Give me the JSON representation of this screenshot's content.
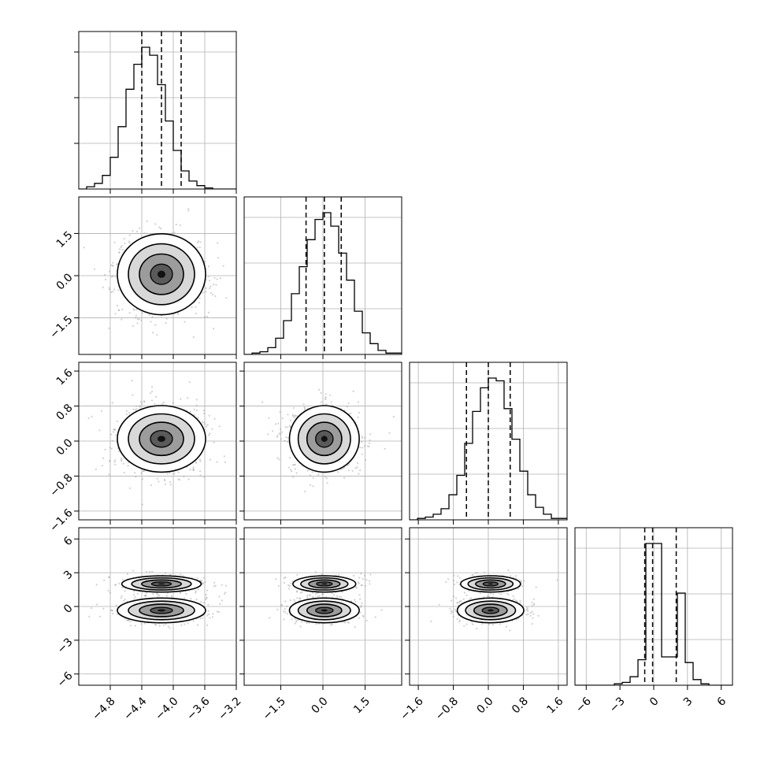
{
  "chart_data": {
    "type": "corner",
    "grid": true,
    "parameters": [
      {
        "range": [
          -5.2,
          -3.2
        ],
        "ticks": [
          -4.8,
          -4.4,
          -4.0,
          -3.6,
          -3.2
        ],
        "tick_labels": [
          "−4.8",
          "−4.4",
          "−4.0",
          "−3.6",
          "−3.2"
        ],
        "quantiles": [
          -4.4,
          -4.15,
          -3.9
        ]
      },
      {
        "range": [
          -2.8,
          2.8
        ],
        "ticks": [
          -1.5,
          0.0,
          1.5
        ],
        "tick_labels": [
          "−1.5",
          "0.0",
          "1.5"
        ],
        "quantiles": [
          -0.6,
          0.05,
          0.65
        ]
      },
      {
        "range": [
          -1.8,
          1.8
        ],
        "ticks": [
          -1.6,
          -0.8,
          0.0,
          0.8,
          1.6
        ],
        "tick_labels": [
          "−1.6",
          "−0.8",
          "0.0",
          "0.8",
          "1.6"
        ],
        "quantiles": [
          -0.5,
          0.0,
          0.5
        ]
      },
      {
        "range": [
          -7,
          7
        ],
        "ticks": [
          -6,
          -3,
          0,
          3,
          6
        ],
        "tick_labels": [
          "−6",
          "−3",
          "0",
          "3",
          "6"
        ],
        "quantiles": [
          -0.8,
          -0.1,
          2.0
        ]
      }
    ],
    "histograms": [
      {
        "bins": [
          -5.2,
          -5.1,
          -5.0,
          -4.9,
          -4.8,
          -4.7,
          -4.6,
          -4.5,
          -4.4,
          -4.3,
          -4.2,
          -4.1,
          -4.0,
          -3.9,
          -3.8,
          -3.7,
          -3.6,
          -3.5,
          -3.4,
          -3.3,
          -3.2
        ],
        "counts": [
          0,
          2,
          5,
          12,
          28,
          55,
          88,
          110,
          125,
          118,
          92,
          60,
          34,
          16,
          7,
          3,
          1,
          0,
          0,
          0
        ]
      },
      {
        "bins": [
          -2.8,
          -2.52,
          -2.24,
          -1.96,
          -1.68,
          -1.4,
          -1.12,
          -0.84,
          -0.56,
          -0.28,
          0.0,
          0.28,
          0.56,
          0.84,
          1.12,
          1.4,
          1.68,
          1.96,
          2.24,
          2.52,
          2.8
        ],
        "counts": [
          0,
          1,
          2,
          5,
          12,
          25,
          45,
          65,
          85,
          100,
          105,
          95,
          75,
          55,
          32,
          16,
          8,
          3,
          1,
          1
        ]
      },
      {
        "bins": [
          -1.8,
          -1.62,
          -1.44,
          -1.26,
          -1.08,
          -0.9,
          -0.72,
          -0.54,
          -0.36,
          -0.18,
          0.0,
          0.18,
          0.36,
          0.54,
          0.72,
          0.9,
          1.08,
          1.26,
          1.44,
          1.62,
          1.8
        ],
        "counts": [
          0,
          1,
          2,
          4,
          8,
          18,
          32,
          55,
          78,
          95,
          102,
          100,
          80,
          58,
          35,
          18,
          9,
          4,
          1,
          1
        ]
      },
      {
        "bins": [
          -7,
          -6.3,
          -5.6,
          -4.9,
          -4.2,
          -3.5,
          -2.8,
          -2.1,
          -1.4,
          -0.7,
          0.0,
          0.7,
          1.4,
          2.1,
          2.8,
          3.5,
          4.2,
          4.9,
          5.6,
          6.3,
          7.0
        ],
        "counts": [
          0,
          0,
          0,
          0,
          0,
          1,
          2,
          6,
          18,
          100,
          100,
          20,
          20,
          65,
          16,
          4,
          1,
          0,
          0,
          0
        ]
      }
    ],
    "pairs": [
      {
        "row": 1,
        "col": 0,
        "center": [
          -4.15,
          0.05
        ],
        "sigma": [
          0.28,
          0.72
        ]
      },
      {
        "row": 2,
        "col": 0,
        "center": [
          -4.15,
          0.05
        ],
        "sigma": [
          0.28,
          0.38
        ]
      },
      {
        "row": 2,
        "col": 1,
        "center": [
          0.05,
          0.05
        ],
        "sigma": [
          0.62,
          0.38
        ]
      },
      {
        "row": 3,
        "col": 0,
        "center": [
          -4.15,
          -0.35
        ],
        "sigma": [
          0.28,
          0.55
        ],
        "secondary_center": [
          -4.15,
          2.0
        ],
        "secondary_sigma": [
          0.28,
          0.4
        ]
      },
      {
        "row": 3,
        "col": 1,
        "center": [
          0.05,
          -0.35
        ],
        "sigma": [
          0.62,
          0.55
        ],
        "secondary_center": [
          0.05,
          2.0
        ],
        "secondary_sigma": [
          0.62,
          0.4
        ]
      },
      {
        "row": 3,
        "col": 2,
        "center": [
          0.05,
          -0.35
        ],
        "sigma": [
          0.38,
          0.55
        ],
        "secondary_center": [
          0.05,
          2.0
        ],
        "secondary_sigma": [
          0.38,
          0.4
        ]
      }
    ]
  }
}
